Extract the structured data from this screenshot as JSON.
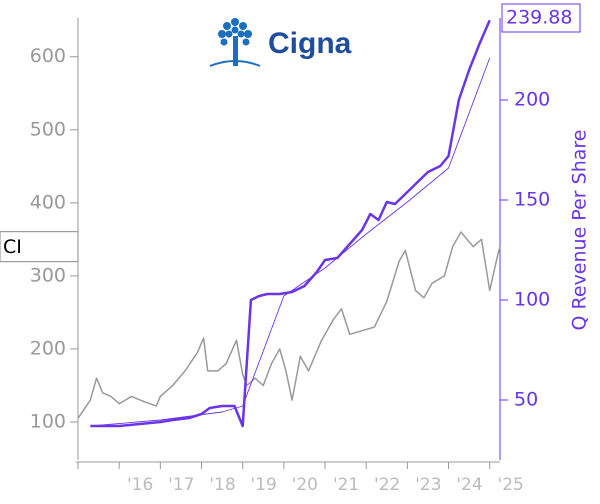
{
  "chart_data": {
    "type": "line",
    "logo": "Cigna",
    "y2label": "Q Revenue Per Share",
    "xlim": [
      2015.0,
      2025.25
    ],
    "xticks": [
      {
        "value": 2015,
        "label": ""
      },
      {
        "value": 2016,
        "label": "'16"
      },
      {
        "value": 2017,
        "label": "'17"
      },
      {
        "value": 2018,
        "label": "'18"
      },
      {
        "value": 2019,
        "label": "'19"
      },
      {
        "value": 2020,
        "label": "'20"
      },
      {
        "value": 2021,
        "label": "'21"
      },
      {
        "value": 2022,
        "label": "'22"
      },
      {
        "value": 2023,
        "label": "'23"
      },
      {
        "value": 2024,
        "label": "'24"
      },
      {
        "value": 2025,
        "label": "'25"
      }
    ],
    "ylim": [
      48,
      653
    ],
    "yticks": [
      100,
      200,
      300,
      400,
      500,
      600
    ],
    "y2lim": [
      20,
      241
    ],
    "y2ticks": [
      50,
      100,
      150,
      200
    ],
    "series": [
      {
        "name": "CI",
        "color": "#999999",
        "x": [
          2015.0,
          2015.3,
          2015.45,
          2015.6,
          2015.8,
          2016.0,
          2016.3,
          2016.6,
          2016.9,
          2017.0,
          2017.3,
          2017.6,
          2017.9,
          2018.05,
          2018.15,
          2018.4,
          2018.6,
          2018.85,
          2019.0,
          2019.1,
          2019.3,
          2019.5,
          2019.7,
          2019.9,
          2020.05,
          2020.2,
          2020.4,
          2020.6,
          2020.9,
          2021.2,
          2021.4,
          2021.6,
          2021.9,
          2022.2,
          2022.5,
          2022.8,
          2022.95,
          2023.2,
          2023.4,
          2023.6,
          2023.9,
          2024.1,
          2024.3,
          2024.6,
          2024.8,
          2025.0,
          2025.2,
          2025.25
        ],
        "values": [
          105,
          130,
          160,
          140,
          135,
          125,
          135,
          128,
          122,
          135,
          150,
          170,
          195,
          215,
          170,
          170,
          180,
          212,
          165,
          150,
          160,
          150,
          180,
          200,
          170,
          130,
          190,
          170,
          210,
          240,
          255,
          220,
          225,
          230,
          265,
          320,
          335,
          280,
          270,
          290,
          300,
          340,
          360,
          340,
          350,
          280,
          330,
          340
        ]
      },
      {
        "name": "Q Revenue Per Share",
        "color": "#6a35e8",
        "axis": "y2",
        "x": [
          2015.3,
          2016.0,
          2016.5,
          2017.0,
          2017.3,
          2017.7,
          2018.0,
          2018.2,
          2018.5,
          2018.8,
          2019.0,
          2019.2,
          2019.4,
          2019.6,
          2019.9,
          2020.2,
          2020.5,
          2020.8,
          2021.0,
          2021.3,
          2021.6,
          2021.9,
          2022.1,
          2022.3,
          2022.5,
          2022.7,
          2023.0,
          2023.2,
          2023.5,
          2023.8,
          2024.0,
          2024.25,
          2024.5,
          2024.75,
          2025.0
        ],
        "values": [
          37,
          37,
          38,
          39,
          40,
          41,
          43,
          46,
          47,
          47,
          37,
          100,
          102,
          103,
          103,
          104,
          107,
          114,
          120,
          121,
          128,
          135,
          143,
          140,
          149,
          148,
          154,
          158,
          164,
          167,
          172,
          200,
          215,
          228,
          239.88
        ]
      },
      {
        "color": "#6a35e8",
        "axis": "y2",
        "x": [
          2015.3,
          2017.0,
          2018.5,
          2019.0,
          2020.0,
          2021.0,
          2022.0,
          2023.0,
          2024.0,
          2025.0
        ],
        "values": [
          37,
          40,
          44,
          47,
          102,
          116,
          133,
          149,
          166,
          221
        ]
      }
    ]
  }
}
